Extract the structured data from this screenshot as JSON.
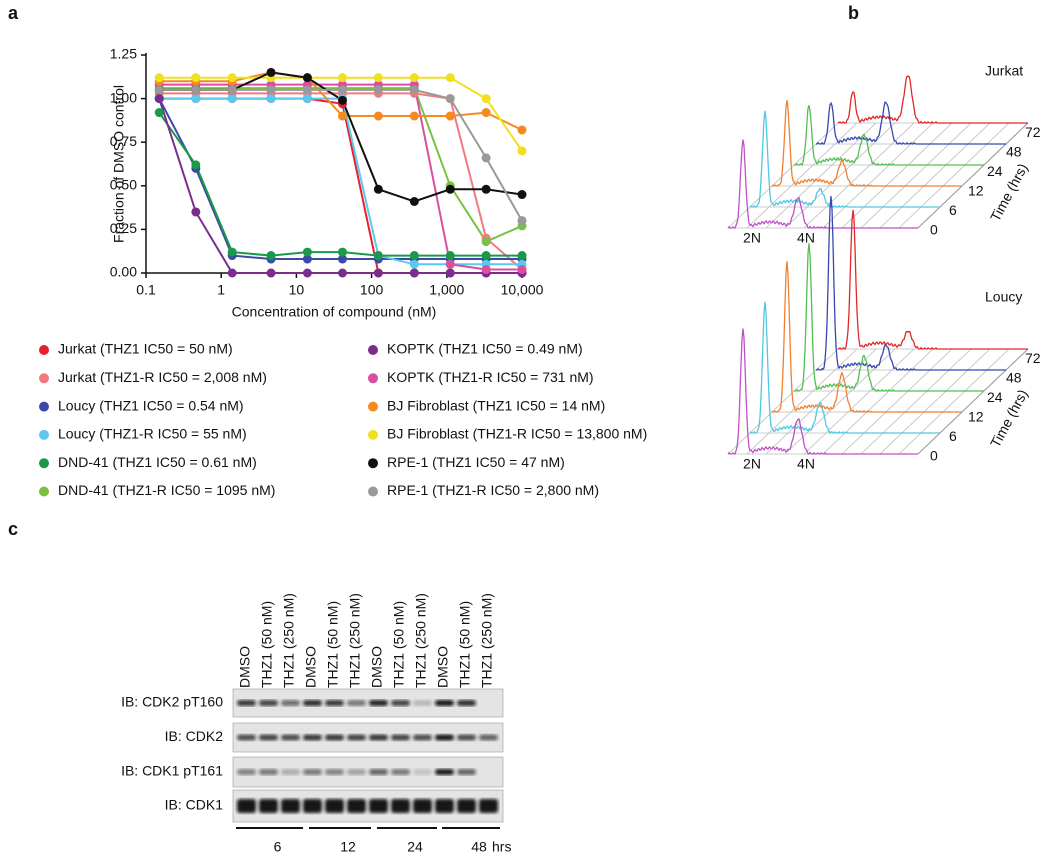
{
  "panel_labels": [
    "a",
    "b",
    "c"
  ],
  "chart_data": {
    "type": "line",
    "x_label": "Concentration of compound (nM)",
    "y_label": "Fraction of DMSO control",
    "log_x": true,
    "xlim": [
      0.1,
      10000
    ],
    "ylim": [
      0,
      1.25
    ],
    "xticks": [
      0.1,
      1,
      10,
      100,
      {
        "value": 1000,
        "label": "1,000"
      },
      {
        "value": 10000,
        "label": "10,000"
      }
    ],
    "yticks": [
      {
        "value": 0,
        "label": "0.00"
      },
      0.25,
      {
        "value": 0.5,
        "label": "0.50"
      },
      0.75,
      {
        "value": 1,
        "label": "1.00"
      },
      1.25
    ],
    "x": [
      0.15,
      0.46,
      1.4,
      4.6,
      14,
      41,
      123,
      370,
      1111,
      3333,
      10000
    ],
    "series": [
      {
        "name": "Jurkat (THZ1 IC50 = 50 nM)",
        "color": "#e8202a",
        "values": [
          1.0,
          1.0,
          1.0,
          1.0,
          1.0,
          0.97,
          0.0,
          0.0,
          0.0,
          0.0,
          0.0
        ]
      },
      {
        "name": "Jurkat (THZ1-R IC50 = 2,008 nM)",
        "color": "#f07a80",
        "values": [
          1.03,
          1.03,
          1.03,
          1.03,
          1.03,
          1.03,
          1.03,
          1.03,
          1.0,
          0.2,
          0.02
        ]
      },
      {
        "name": "Loucy (THZ1 IC50 = 0.54 nM)",
        "color": "#3a4aa8",
        "values": [
          1.0,
          0.6,
          0.1,
          0.08,
          0.08,
          0.08,
          0.08,
          0.08,
          0.08,
          0.08,
          0.08
        ]
      },
      {
        "name": "Loucy (THZ1-R IC50 = 55 nM)",
        "color": "#5bc8ee",
        "values": [
          1.0,
          1.0,
          1.0,
          1.0,
          1.0,
          1.0,
          0.1,
          0.05,
          0.05,
          0.05,
          0.05
        ]
      },
      {
        "name": "DND-41 (THZ1 IC50 = 0.61 nM)",
        "color": "#1a9a48",
        "values": [
          0.92,
          0.62,
          0.12,
          0.1,
          0.12,
          0.12,
          0.1,
          0.1,
          0.1,
          0.1,
          0.1
        ]
      },
      {
        "name": "DND-41 (THZ1-R IC50 = 1095 nM)",
        "color": "#7ac143",
        "values": [
          1.06,
          1.06,
          1.06,
          1.06,
          1.06,
          1.06,
          1.06,
          1.06,
          0.5,
          0.18,
          0.27
        ]
      },
      {
        "name": "KOPTK (THZ1 IC50 = 0.49 nM)",
        "color": "#7b2d8e",
        "values": [
          1.0,
          0.35,
          0.0,
          0.0,
          0.0,
          0.0,
          0.0,
          0.0,
          0.0,
          0.0,
          0.0
        ]
      },
      {
        "name": "KOPTK (THZ1-R IC50 = 731 nM)",
        "color": "#d94fa0",
        "values": [
          1.08,
          1.08,
          1.08,
          1.08,
          1.08,
          1.08,
          1.08,
          1.08,
          0.05,
          0.02,
          0.02
        ]
      },
      {
        "name": "BJ Fibroblast (THZ1 IC50 = 14 nM)",
        "color": "#f48a20",
        "values": [
          1.1,
          1.1,
          1.1,
          1.15,
          1.12,
          0.9,
          0.9,
          0.9,
          0.9,
          0.92,
          0.82
        ]
      },
      {
        "name": "BJ Fibroblast (THZ1-R IC50 = 13,800 nM)",
        "color": "#f0e020",
        "values": [
          1.12,
          1.12,
          1.12,
          1.12,
          1.12,
          1.12,
          1.12,
          1.12,
          1.12,
          1.0,
          0.7
        ]
      },
      {
        "name": "RPE-1 (THZ1 IC50 = 47 nM)",
        "color": "#111111",
        "values": [
          1.05,
          1.05,
          1.05,
          1.15,
          1.12,
          0.99,
          0.48,
          0.41,
          0.48,
          0.48,
          0.45
        ]
      },
      {
        "name": "RPE-1 (THZ1-R IC50 = 2,800 nM)",
        "color": "#999999",
        "values": [
          1.05,
          1.05,
          1.05,
          1.05,
          1.05,
          1.05,
          1.05,
          1.05,
          1.0,
          0.66,
          0.3
        ]
      }
    ]
  },
  "panel_b": {
    "samples": [
      "Jurkat",
      "Loucy"
    ],
    "times": [
      72,
      48,
      24,
      12,
      6,
      0
    ],
    "time_label": "Time (hrs)",
    "peak_labels": [
      "2N",
      "4N"
    ]
  },
  "panel_c": {
    "lanes": [
      "DMSO",
      "THZ1 (50 nM)",
      "THZ1 (250 nM)",
      "DMSO",
      "THZ1 (50 nM)",
      "THZ1 (250 nM)",
      "DMSO",
      "THZ1 (50 nM)",
      "THZ1 (250 nM)",
      "DMSO",
      "THZ1 (50 nM)",
      "THZ1 (250 nM)"
    ],
    "rows": [
      "IB: CDK2 pT160",
      "IB: CDK2",
      "IB: CDK1 pT161",
      "IB: CDK1"
    ],
    "timepoints": [
      "6",
      "12",
      "24",
      "48"
    ],
    "time_unit": "hrs"
  }
}
